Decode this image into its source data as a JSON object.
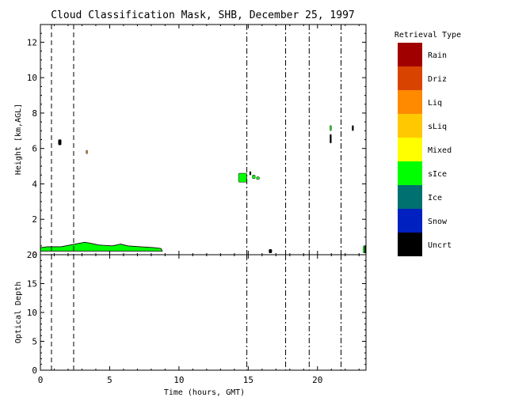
{
  "chart_data": {
    "type": "heatmap",
    "title": "Cloud Classification Mask, SHB, December 25, 1997",
    "xlabel": "Time (hours, GMT)",
    "xlim": [
      0,
      23.5
    ],
    "x_ticks": [
      0,
      5,
      10,
      15,
      20
    ],
    "x_tick_labels": [
      "0",
      "5",
      "10",
      "15",
      "20"
    ],
    "vlines_hours": [
      0.8,
      2.4,
      14.9,
      17.7,
      19.4,
      21.7
    ],
    "vline_styles": [
      "dashed",
      "dashed",
      "dashdot",
      "dashdot",
      "dashdot",
      "dashdot"
    ],
    "top_panel": {
      "ylabel": "Height [km,AGL]",
      "ylim": [
        0,
        13
      ],
      "y_ticks": [
        0,
        2,
        4,
        6,
        8,
        10,
        12
      ],
      "y_tick_labels": [
        "0",
        "2",
        "4",
        "6",
        "8",
        "10",
        "12"
      ],
      "cloud_features": [
        {
          "label": "sIce",
          "kind": "profile",
          "top": [
            [
              0.0,
              0.4
            ],
            [
              0.5,
              0.45
            ],
            [
              1.5,
              0.45
            ],
            [
              2.5,
              0.6
            ],
            [
              3.2,
              0.7
            ],
            [
              3.6,
              0.65
            ],
            [
              4.2,
              0.55
            ],
            [
              5.2,
              0.5
            ],
            [
              5.8,
              0.6
            ],
            [
              6.3,
              0.5
            ],
            [
              7.2,
              0.45
            ],
            [
              8.2,
              0.4
            ],
            [
              8.7,
              0.35
            ],
            [
              8.8,
              0.2
            ]
          ],
          "base_km": 0.2
        },
        {
          "label": "Uncrt",
          "kind": "blob",
          "x": [
            1.3,
            1.5
          ],
          "y": [
            6.2,
            6.5
          ]
        },
        {
          "label": "Liq",
          "kind": "blob",
          "x": [
            3.3,
            3.4
          ],
          "y": [
            5.7,
            5.9
          ]
        },
        {
          "label": "sIce",
          "kind": "blob",
          "x": [
            14.3,
            14.9
          ],
          "y": [
            4.1,
            4.6
          ]
        },
        {
          "label": "sIce",
          "kind": "blob",
          "x": [
            15.3,
            15.5
          ],
          "y": [
            4.3,
            4.5
          ]
        },
        {
          "label": "sIce",
          "kind": "blob",
          "x": [
            15.6,
            15.8
          ],
          "y": [
            4.25,
            4.4
          ]
        },
        {
          "label": "Uncrt",
          "kind": "blob",
          "x": [
            15.1,
            15.2
          ],
          "y": [
            4.5,
            4.7
          ]
        },
        {
          "label": "Uncrt",
          "kind": "blob",
          "x": [
            16.5,
            16.7
          ],
          "y": [
            0.1,
            0.3
          ]
        },
        {
          "label": "sIce",
          "kind": "blob",
          "x": [
            20.9,
            21.0
          ],
          "y": [
            7.0,
            7.3
          ]
        },
        {
          "label": "Uncrt",
          "kind": "blob",
          "x": [
            20.9,
            21.0
          ],
          "y": [
            6.3,
            6.8
          ]
        },
        {
          "label": "Uncrt",
          "kind": "blob",
          "x": [
            22.5,
            22.6
          ],
          "y": [
            7.0,
            7.3
          ]
        },
        {
          "label": "sIce",
          "kind": "blob",
          "x": [
            23.3,
            23.5
          ],
          "y": [
            0.1,
            0.5
          ]
        },
        {
          "label": "Uncrt",
          "kind": "blob",
          "x": [
            23.4,
            23.5
          ],
          "y": [
            0.1,
            0.5
          ]
        }
      ]
    },
    "bottom_panel": {
      "ylabel": "Optical Depth",
      "ylim": [
        0,
        20
      ],
      "y_ticks": [
        0,
        5,
        10,
        15,
        20
      ],
      "y_tick_labels": [
        "0",
        "5",
        "10",
        "15",
        "20"
      ]
    },
    "legend": {
      "title": "Retrieval Type",
      "placement": "right",
      "entries": [
        {
          "label": "Rain",
          "color": "#a00000"
        },
        {
          "label": "Driz",
          "color": "#d84400"
        },
        {
          "label": "Liq",
          "color": "#ff8a00"
        },
        {
          "label": "sLiq",
          "color": "#ffc800"
        },
        {
          "label": "Mixed",
          "color": "#ffff00"
        },
        {
          "label": "sIce",
          "color": "#00ff00"
        },
        {
          "label": "Ice",
          "color": "#007070"
        },
        {
          "label": "Snow",
          "color": "#0020c0"
        },
        {
          "label": "Uncrt",
          "color": "#000000"
        }
      ]
    }
  }
}
